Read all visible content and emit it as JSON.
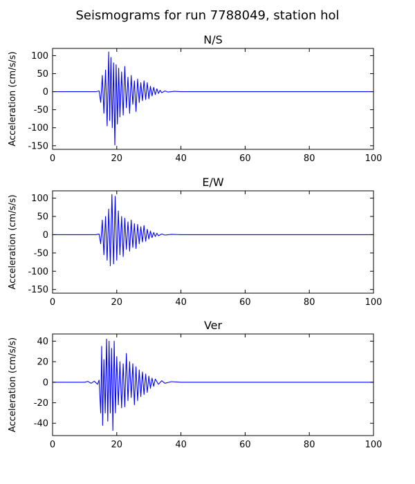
{
  "figure": {
    "title": "Seismograms for run 7788049, station hol"
  },
  "chart_data": [
    {
      "type": "line",
      "title": "N/S",
      "xlabel": "",
      "ylabel": "Acceleration (cm/s/s)",
      "xlim": [
        0,
        100
      ],
      "ylim": [
        -160,
        120
      ],
      "xticks": [
        0,
        20,
        40,
        60,
        80,
        100
      ],
      "yticks": [
        -150,
        -100,
        -50,
        0,
        50,
        100
      ],
      "grid": false,
      "series": [
        {
          "color": "#0000ff",
          "x": [
            0,
            10,
            13.5,
            14.5,
            15.0,
            15.5,
            16.0,
            16.5,
            17.0,
            17.5,
            17.8,
            18.2,
            18.6,
            19.0,
            19.4,
            19.8,
            20.2,
            20.6,
            21.0,
            21.5,
            22.0,
            22.5,
            23.0,
            23.5,
            24.0,
            24.5,
            25.0,
            25.5,
            26.0,
            26.5,
            27.0,
            27.5,
            28.0,
            28.5,
            29.0,
            29.5,
            30.0,
            30.5,
            31.0,
            31.5,
            32.0,
            32.5,
            33.0,
            33.5,
            34.0,
            35.0,
            36.0,
            38.0,
            40.0,
            45.0,
            60.0,
            80.0,
            100.0
          ],
          "y": [
            0,
            0,
            0,
            2,
            -30,
            45,
            -60,
            60,
            -95,
            110,
            -80,
            95,
            -100,
            80,
            -148,
            75,
            -90,
            65,
            -70,
            55,
            -65,
            70,
            -45,
            40,
            -60,
            45,
            -35,
            30,
            -55,
            35,
            -30,
            25,
            -25,
            30,
            -22,
            25,
            -20,
            15,
            -12,
            12,
            -8,
            8,
            -5,
            4,
            -3,
            2,
            -1,
            1,
            0,
            0,
            0,
            0,
            0
          ]
        }
      ]
    },
    {
      "type": "line",
      "title": "E/W",
      "xlabel": "",
      "ylabel": "Acceleration (cm/s/s)",
      "xlim": [
        0,
        100
      ],
      "ylim": [
        -160,
        120
      ],
      "xticks": [
        0,
        20,
        40,
        60,
        80,
        100
      ],
      "yticks": [
        -150,
        -100,
        -50,
        0,
        50,
        100
      ],
      "grid": false,
      "series": [
        {
          "color": "#0000ff",
          "x": [
            0,
            10,
            13.5,
            14.5,
            15.0,
            15.5,
            16.0,
            16.5,
            17.0,
            17.5,
            18.0,
            18.5,
            19.0,
            19.5,
            20.0,
            20.5,
            21.0,
            21.5,
            22.0,
            22.5,
            23.0,
            23.5,
            24.0,
            24.5,
            25.0,
            25.5,
            26.0,
            26.5,
            27.0,
            27.5,
            28.0,
            28.5,
            29.0,
            29.5,
            30.0,
            30.5,
            31.0,
            31.5,
            32.0,
            32.5,
            33.0,
            34.0,
            35.0,
            37.0,
            40.0,
            60.0,
            80.0,
            100.0
          ],
          "y": [
            0,
            0,
            0,
            2,
            -25,
            40,
            -55,
            50,
            -70,
            70,
            -85,
            110,
            -80,
            105,
            -70,
            65,
            -55,
            50,
            -60,
            45,
            -40,
            35,
            -45,
            40,
            -35,
            30,
            -38,
            28,
            -25,
            22,
            -20,
            25,
            -18,
            15,
            -12,
            10,
            -8,
            6,
            -5,
            4,
            -3,
            2,
            -1,
            1,
            0,
            0,
            0,
            0
          ]
        }
      ]
    },
    {
      "type": "line",
      "title": "Ver",
      "xlabel": "",
      "ylabel": "Acceleration (cm/s/s)",
      "xlim": [
        0,
        100
      ],
      "ylim": [
        -52,
        47
      ],
      "xticks": [
        0,
        20,
        40,
        60,
        80,
        100
      ],
      "yticks": [
        -40,
        -20,
        0,
        20,
        40
      ],
      "grid": false,
      "series": [
        {
          "color": "#0000ff",
          "x": [
            0,
            10.0,
            11.0,
            12.0,
            13.0,
            14.0,
            14.5,
            15.0,
            15.3,
            15.6,
            16.0,
            16.4,
            16.8,
            17.2,
            17.6,
            18.0,
            18.4,
            18.8,
            19.2,
            19.6,
            20.0,
            20.5,
            21.0,
            21.5,
            22.0,
            22.5,
            23.0,
            23.5,
            24.0,
            24.5,
            25.0,
            25.5,
            26.0,
            26.5,
            27.0,
            27.5,
            28.0,
            28.5,
            29.0,
            29.5,
            30.0,
            30.5,
            31.0,
            31.5,
            32.0,
            33.0,
            34.0,
            35.0,
            37.0,
            40.0,
            60.0,
            80.0,
            100.0
          ],
          "y": [
            0,
            0,
            0.8,
            -1,
            1,
            -2,
            2,
            -30,
            35,
            -42,
            22,
            -30,
            42,
            -38,
            40,
            -30,
            33,
            -47,
            40,
            -30,
            25,
            -22,
            20,
            -25,
            18,
            -24,
            28,
            -18,
            20,
            -15,
            18,
            -22,
            15,
            -18,
            12,
            -14,
            10,
            -12,
            8,
            -10,
            6,
            -6,
            4,
            -4,
            3,
            -2,
            1.5,
            -1,
            0.5,
            0,
            0,
            0,
            0
          ]
        }
      ]
    }
  ]
}
